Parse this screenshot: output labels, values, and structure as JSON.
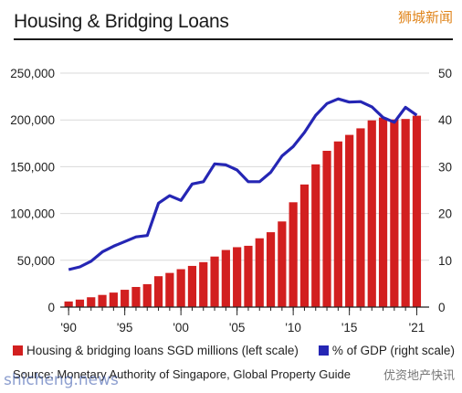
{
  "watermark_top": "狮城新闻",
  "watermark_bottom_left": "shicheng.news",
  "watermark_bottom_right": "优资地产快讯",
  "source": "Source: Monetary Authority of Singapore, Global Property Guide",
  "colors": {
    "bar": "#d21f1f",
    "line": "#2526b4",
    "grid": "#d9d9d9"
  },
  "chart_data": {
    "type": "bar",
    "title": "Housing & Bridging Loans",
    "x": [
      1990,
      1991,
      1992,
      1993,
      1994,
      1995,
      1996,
      1997,
      1998,
      1999,
      2000,
      2001,
      2002,
      2003,
      2004,
      2005,
      2006,
      2007,
      2008,
      2009,
      2010,
      2011,
      2012,
      2013,
      2014,
      2015,
      2016,
      2017,
      2018,
      2019,
      2020,
      2021
    ],
    "x_tick_labels": [
      "'90",
      "'95",
      "'00",
      "'05",
      "'10",
      "'15",
      "'21"
    ],
    "x_tick_values": [
      1990,
      1995,
      2000,
      2005,
      2010,
      2015,
      2021
    ],
    "series": [
      {
        "name": "Housing & bridging loans SGD millions (left scale)",
        "type": "bar",
        "axis": "left",
        "values": [
          6000,
          8000,
          10500,
          13000,
          15500,
          18500,
          21500,
          24500,
          33000,
          36500,
          40500,
          44000,
          48000,
          54000,
          61000,
          64000,
          65500,
          73500,
          80000,
          91500,
          112000,
          131000,
          152500,
          167000,
          177000,
          184000,
          191000,
          199500,
          202500,
          200500,
          201000,
          204500
        ]
      },
      {
        "name": "% of GDP (right scale)",
        "type": "line",
        "axis": "right",
        "values": [
          8,
          8.6,
          9.8,
          11.8,
          13,
          14,
          15,
          15.3,
          22.2,
          23.8,
          22.8,
          26.3,
          26.8,
          30.6,
          30.4,
          29.3,
          26.8,
          26.8,
          28.8,
          32.3,
          34.3,
          37.3,
          41,
          43.5,
          44.5,
          43.8,
          43.9,
          42.8,
          40.5,
          39.5,
          42.7,
          41
        ]
      }
    ],
    "y_left": {
      "ylim": [
        0,
        250000
      ],
      "ticks": [
        "0",
        "50,000",
        "100,000",
        "150,000",
        "200,000",
        "250,000"
      ]
    },
    "y_right": {
      "ylim": [
        0,
        50
      ],
      "ticks": [
        "0",
        "10",
        "20",
        "30",
        "40",
        "50"
      ]
    },
    "grid": true,
    "legend_position": "bottom"
  }
}
